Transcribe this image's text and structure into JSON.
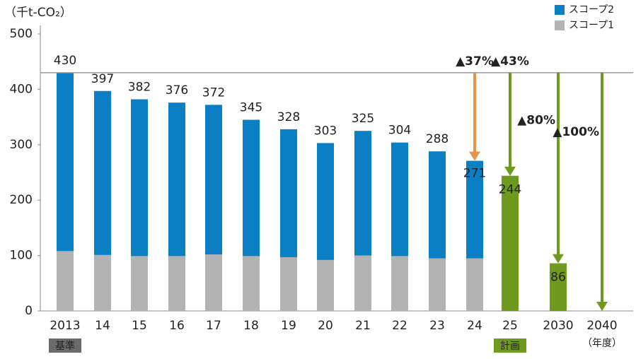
{
  "chart_data": {
    "type": "bar",
    "stacked": true,
    "y_unit_label": "（千t-CO₂）",
    "x_unit_label": "（年度）",
    "categories": [
      "2013",
      "14",
      "15",
      "16",
      "17",
      "18",
      "19",
      "20",
      "21",
      "22",
      "23",
      "24",
      "25",
      "2030",
      "2040"
    ],
    "series": [
      {
        "name": "スコープ1",
        "color": "#b3b3b3",
        "values": [
          108,
          101,
          99,
          99,
          102,
          99,
          97,
          92,
          100,
          99,
          95,
          95,
          null,
          null,
          null
        ]
      },
      {
        "name": "スコープ2",
        "color": "#0a7fc4",
        "values": [
          322,
          296,
          283,
          277,
          270,
          246,
          231,
          211,
          225,
          205,
          193,
          176,
          null,
          null,
          null
        ]
      }
    ],
    "totals": [
      430,
      397,
      382,
      376,
      372,
      345,
      328,
      303,
      325,
      304,
      288,
      271,
      null,
      null,
      null
    ],
    "plan_values": [
      null,
      null,
      null,
      null,
      null,
      null,
      null,
      null,
      null,
      null,
      null,
      null,
      244,
      86,
      null
    ],
    "plan_color": "#6e9a1e",
    "reference_line": 430,
    "arrows": [
      {
        "index": 11,
        "label": "▲37%",
        "color": "#e8944a",
        "to": 271
      },
      {
        "index": 12,
        "label": "▲43%",
        "color": "#6e9a1e",
        "to": 244
      },
      {
        "index": 13,
        "label": "▲80%",
        "color": "#6e9a1e",
        "to": 86
      },
      {
        "index": 14,
        "label": "▲100%",
        "color": "#6e9a1e",
        "to": 0
      }
    ],
    "category_tags": [
      {
        "index": 0,
        "label": "基準",
        "color": "#6b6b6b"
      },
      {
        "index": 12,
        "label": "計画",
        "color": "#6e9a1e"
      }
    ],
    "ylim": [
      0,
      500
    ],
    "yticks": [
      0,
      100,
      200,
      300,
      400,
      500
    ],
    "grid": false
  }
}
